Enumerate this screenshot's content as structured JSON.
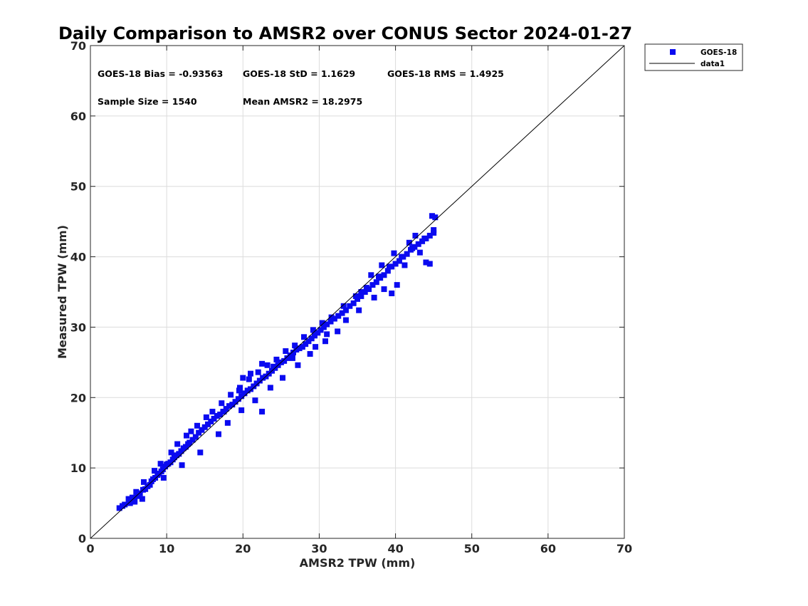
{
  "chart_data": {
    "type": "scatter",
    "title": "Daily Comparison to AMSR2 over CONUS Sector 2024-01-27",
    "xlabel": "AMSR2 TPW (mm)",
    "ylabel": "Measured TPW (mm)",
    "xlim": [
      0,
      70
    ],
    "ylim": [
      0,
      70
    ],
    "xticks": [
      "0",
      "10",
      "20",
      "30",
      "40",
      "50",
      "60",
      "70"
    ],
    "yticks": [
      "0",
      "10",
      "20",
      "30",
      "40",
      "50",
      "60",
      "70"
    ],
    "grid": true,
    "legend_position": "outside-top-right",
    "colors": {
      "points": "#0a0af0",
      "line": "#000000",
      "grid": "#dcdcdc"
    },
    "stats": [
      "GOES-18 Bias = -0.93563",
      "GOES-18 StD = 1.1629",
      "GOES-18 RMS = 1.4925",
      "Sample Size = 1540",
      "Mean AMSR2 = 18.2975"
    ],
    "series": [
      {
        "name": "GOES-18",
        "kind": "scatter",
        "x": [
          3.8,
          4.5,
          5.2,
          5.0,
          5.8,
          6.2,
          6.5,
          6.9,
          7.2,
          7.5,
          7.8,
          8.0,
          8.2,
          8.5,
          8.8,
          9.0,
          9.3,
          9.5,
          9.8,
          10.0,
          10.2,
          10.5,
          10.8,
          11.0,
          11.3,
          11.6,
          11.9,
          12.2,
          12.5,
          12.8,
          13.0,
          13.4,
          13.8,
          14.2,
          14.6,
          15.0,
          15.4,
          15.8,
          16.2,
          16.6,
          17.0,
          17.4,
          17.8,
          18.2,
          18.6,
          19.0,
          19.4,
          19.8,
          20.2,
          20.6,
          21.0,
          21.4,
          21.8,
          22.2,
          22.6,
          23.0,
          23.4,
          23.8,
          24.2,
          24.6,
          25.0,
          25.4,
          25.8,
          26.2,
          26.6,
          27.0,
          27.4,
          27.8,
          28.2,
          28.6,
          29.0,
          29.4,
          29.8,
          30.2,
          30.6,
          31.0,
          31.5,
          32.0,
          32.5,
          33.0,
          33.5,
          34.0,
          34.5,
          35.0,
          35.5,
          36.0,
          36.5,
          37.0,
          37.5,
          38.0,
          38.5,
          39.0,
          39.5,
          40.0,
          40.5,
          41.0,
          41.5,
          42.0,
          42.5,
          43.0,
          43.5,
          44.0,
          44.5,
          45.0,
          5.5,
          6.0,
          7.0,
          8.4,
          9.2,
          10.6,
          11.4,
          12.6,
          13.2,
          14.0,
          15.2,
          16.0,
          17.2,
          18.4,
          19.6,
          20.8,
          22.0,
          23.2,
          24.4,
          25.6,
          26.8,
          28.0,
          29.2,
          30.4,
          31.6,
          33.2,
          34.8,
          36.2,
          37.8,
          39.2,
          40.8,
          42.2,
          43.8,
          19.5,
          20.0,
          21.0,
          22.5,
          24.0,
          26.5,
          29.5,
          33.5,
          38.5,
          39.5,
          44.0,
          44.8,
          45.2,
          4.2,
          5.8,
          6.8,
          9.6,
          12.0,
          14.4,
          16.8,
          18.0,
          19.8,
          21.6,
          23.6,
          25.2,
          27.2,
          28.8,
          30.8,
          32.4,
          35.2,
          37.2,
          41.2,
          43.2,
          17.5,
          22.5,
          31.0,
          35.5,
          40.2,
          44.5,
          45.0,
          42.6,
          41.8,
          39.8,
          38.2,
          36.8
        ],
        "y": [
          4.3,
          4.8,
          5.0,
          5.6,
          5.4,
          6.0,
          6.4,
          6.9,
          7.0,
          7.4,
          7.6,
          8.1,
          8.4,
          8.6,
          9.0,
          9.2,
          9.5,
          9.8,
          10.2,
          10.5,
          10.6,
          10.8,
          11.2,
          11.5,
          11.8,
          12.0,
          12.4,
          12.8,
          13.0,
          13.4,
          13.6,
          14.0,
          14.4,
          15.0,
          15.4,
          15.8,
          16.2,
          16.6,
          17.0,
          17.4,
          17.6,
          18.0,
          18.4,
          18.8,
          19.0,
          19.4,
          19.8,
          20.2,
          20.6,
          21.0,
          21.2,
          21.6,
          22.0,
          22.4,
          22.8,
          23.0,
          23.4,
          23.8,
          24.2,
          24.6,
          25.0,
          25.2,
          25.6,
          26.0,
          26.4,
          26.8,
          27.0,
          27.2,
          27.6,
          28.0,
          28.4,
          28.8,
          29.2,
          29.6,
          30.0,
          30.4,
          30.8,
          31.2,
          31.6,
          32.0,
          32.4,
          33.0,
          33.4,
          34.0,
          34.4,
          35.0,
          35.4,
          36.0,
          36.4,
          37.0,
          37.4,
          38.0,
          38.6,
          39.0,
          39.4,
          40.0,
          40.4,
          41.0,
          41.4,
          41.8,
          42.2,
          42.6,
          43.0,
          43.4,
          5.8,
          6.6,
          8.0,
          9.6,
          10.6,
          12.2,
          13.4,
          14.6,
          15.2,
          16.0,
          17.2,
          18.0,
          19.2,
          20.4,
          21.4,
          22.6,
          23.6,
          24.6,
          25.4,
          26.6,
          27.4,
          28.6,
          29.6,
          30.6,
          31.4,
          33.0,
          34.4,
          35.6,
          37.2,
          38.6,
          40.0,
          41.2,
          42.6,
          21.0,
          22.8,
          23.4,
          24.8,
          24.4,
          25.6,
          27.2,
          31.0,
          35.4,
          34.8,
          39.2,
          45.8,
          45.6,
          4.6,
          5.2,
          5.6,
          8.6,
          10.4,
          12.2,
          14.8,
          16.4,
          18.2,
          19.6,
          21.4,
          22.8,
          24.6,
          26.2,
          28.0,
          29.4,
          32.4,
          34.2,
          38.8,
          40.6,
          18.0,
          18.0,
          29.0,
          35.0,
          36.0,
          39.0,
          43.8,
          43.0,
          42.0,
          40.5,
          38.8,
          37.4
        ]
      },
      {
        "name": "data1",
        "kind": "line",
        "x": [
          0,
          70
        ],
        "y": [
          0,
          70
        ]
      }
    ]
  }
}
